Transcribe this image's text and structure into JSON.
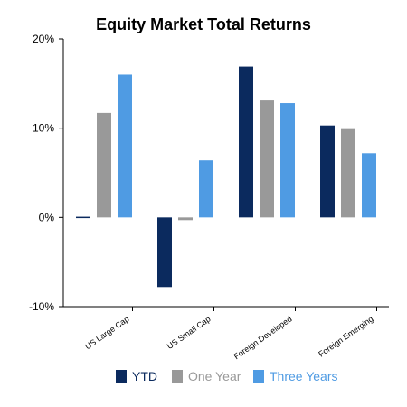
{
  "chart_data": {
    "type": "bar",
    "title": "Equity Market Total Returns",
    "categories": [
      "US Large Cap",
      "US Small Cap",
      "Foreign Developed",
      "Foreign Emerging"
    ],
    "series": [
      {
        "name": "YTD",
        "values": [
          -0.1,
          -7.8,
          16.9,
          10.3
        ]
      },
      {
        "name": "One Year",
        "values": [
          11.7,
          -0.3,
          13.1,
          9.9
        ]
      },
      {
        "name": "Three Years",
        "values": [
          16.0,
          6.4,
          12.8,
          7.2
        ]
      }
    ],
    "y_tick_labels": [
      "20%",
      "10%",
      "0%",
      "-10%"
    ],
    "ylim": [
      -10,
      20
    ],
    "y_ticks": [
      20,
      10,
      0,
      -10
    ],
    "grid": false,
    "legend_position": "bottom",
    "colors": {
      "YTD": "#0b2a5e",
      "One Year": "#999999",
      "Three Years": "#4f9be3"
    },
    "legend_text_colors": {
      "YTD": "#0b2a5e",
      "One Year": "#999999",
      "Three Years": "#4f9be3"
    }
  }
}
